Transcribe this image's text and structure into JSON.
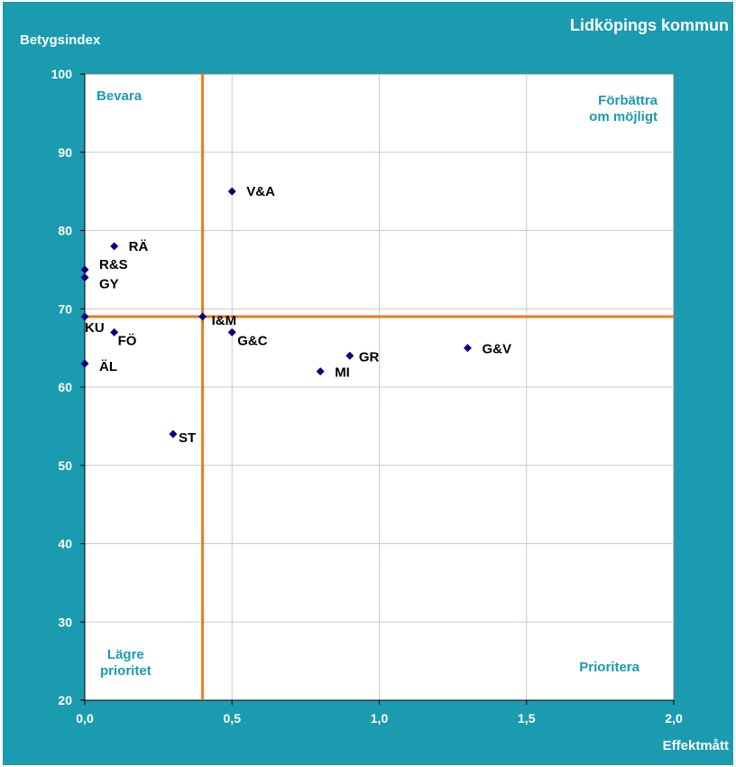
{
  "chart_data": {
    "type": "scatter",
    "title": "Lidköpings kommun",
    "xlabel": "Effektmått",
    "ylabel": "Betygsindex",
    "xlim": [
      0,
      2.0
    ],
    "ylim": [
      20,
      100
    ],
    "x_ticks": [
      "0,0",
      "0,5",
      "1,0",
      "1,5",
      "2,0"
    ],
    "y_ticks": [
      "20",
      "30",
      "40",
      "50",
      "60",
      "70",
      "80",
      "90",
      "100"
    ],
    "grid": true,
    "reference_lines": {
      "x": 0.4,
      "y": 69
    },
    "quadrant_labels": {
      "top_left": "Bevara",
      "top_right": [
        "Förbättra",
        "om möjligt"
      ],
      "bottom_left": [
        "Lägre",
        "prioritet"
      ],
      "bottom_right": "Prioritera"
    },
    "points": [
      {
        "label": "V&A",
        "x": 0.5,
        "y": 85
      },
      {
        "label": "RÄ",
        "x": 0.1,
        "y": 78
      },
      {
        "label": "R&S",
        "x": 0.0,
        "y": 75
      },
      {
        "label": "GY",
        "x": 0.0,
        "y": 74
      },
      {
        "label": "KU",
        "x": 0.0,
        "y": 69
      },
      {
        "label": "I&M",
        "x": 0.4,
        "y": 69
      },
      {
        "label": "FÖ",
        "x": 0.1,
        "y": 67
      },
      {
        "label": "G&C",
        "x": 0.5,
        "y": 67
      },
      {
        "label": "G&V",
        "x": 1.3,
        "y": 65
      },
      {
        "label": "GR",
        "x": 0.9,
        "y": 64
      },
      {
        "label": "ÄL",
        "x": 0.0,
        "y": 63
      },
      {
        "label": "MI",
        "x": 0.8,
        "y": 62
      },
      {
        "label": "ST",
        "x": 0.3,
        "y": 54
      }
    ]
  },
  "colors": {
    "frame": "#1a9bb0",
    "plot_area": "#ffffff",
    "gridline": "#c8c8dc",
    "reference_line": "#f07a1a",
    "marker": "#000080",
    "quadrant_text": "#1a9bb0"
  }
}
